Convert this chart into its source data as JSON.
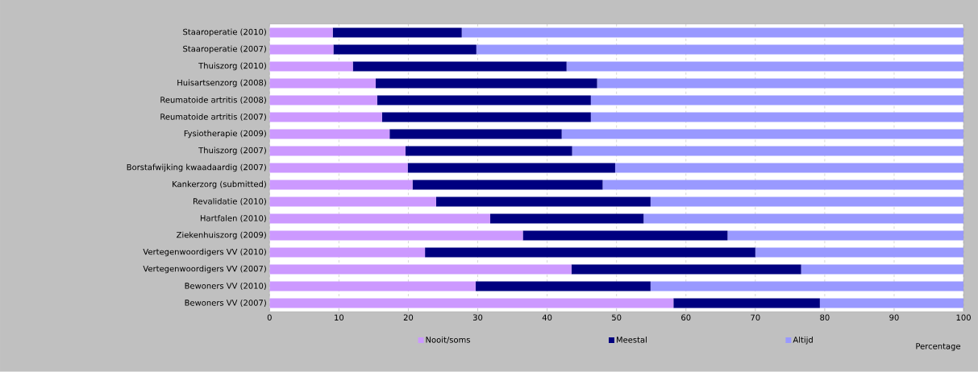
{
  "chart_data": {
    "type": "bar",
    "orientation": "horizontal",
    "stacked": true,
    "categories": [
      "Staaroperatie (2010)",
      "Staaroperatie (2007)",
      "Thuiszorg (2010)",
      "Huisartsenzorg (2008)",
      "Reumatoide artritis (2008)",
      "Reumatoide artritis (2007)",
      "Fysiotherapie (2009)",
      "Thuiszorg (2007)",
      "Borstafwijking kwaadaardig (2007)",
      "Kankerzorg (submitted)",
      "Revalidatie (2010)",
      "Hartfalen (2010)",
      "Ziekenhuiszorg (2009)",
      "Vertegenwoordigers VV (2010)",
      "Vertegenwoordigers VV (2007)",
      "Bewoners VV (2010)",
      "Bewoners VV (2007)"
    ],
    "series": [
      {
        "name": "Nooit/soms",
        "color": "#cc99ff",
        "values": [
          9.1,
          9.2,
          12.0,
          15.3,
          15.5,
          16.2,
          17.3,
          19.6,
          19.9,
          20.6,
          24.0,
          31.8,
          36.5,
          22.4,
          43.5,
          29.7,
          58.2
        ]
      },
      {
        "name": "Meestal",
        "color": "#000080",
        "values": [
          18.6,
          20.6,
          30.8,
          31.9,
          30.8,
          30.1,
          24.8,
          24.0,
          29.9,
          27.4,
          30.9,
          22.1,
          29.5,
          47.6,
          33.1,
          25.2,
          21.1
        ]
      },
      {
        "name": "Altijd",
        "color": "#9999ff",
        "values": [
          72.3,
          70.2,
          57.2,
          52.8,
          53.7,
          53.7,
          57.9,
          56.4,
          50.2,
          52.0,
          45.1,
          46.1,
          34.0,
          30.0,
          23.4,
          45.1,
          20.7
        ]
      }
    ],
    "xlabel": "Percentage",
    "xlim": [
      0,
      100
    ],
    "xticks": [
      0,
      10,
      20,
      30,
      40,
      50,
      60,
      70,
      80,
      90,
      100
    ],
    "grid": "x",
    "legend": "bottom"
  }
}
